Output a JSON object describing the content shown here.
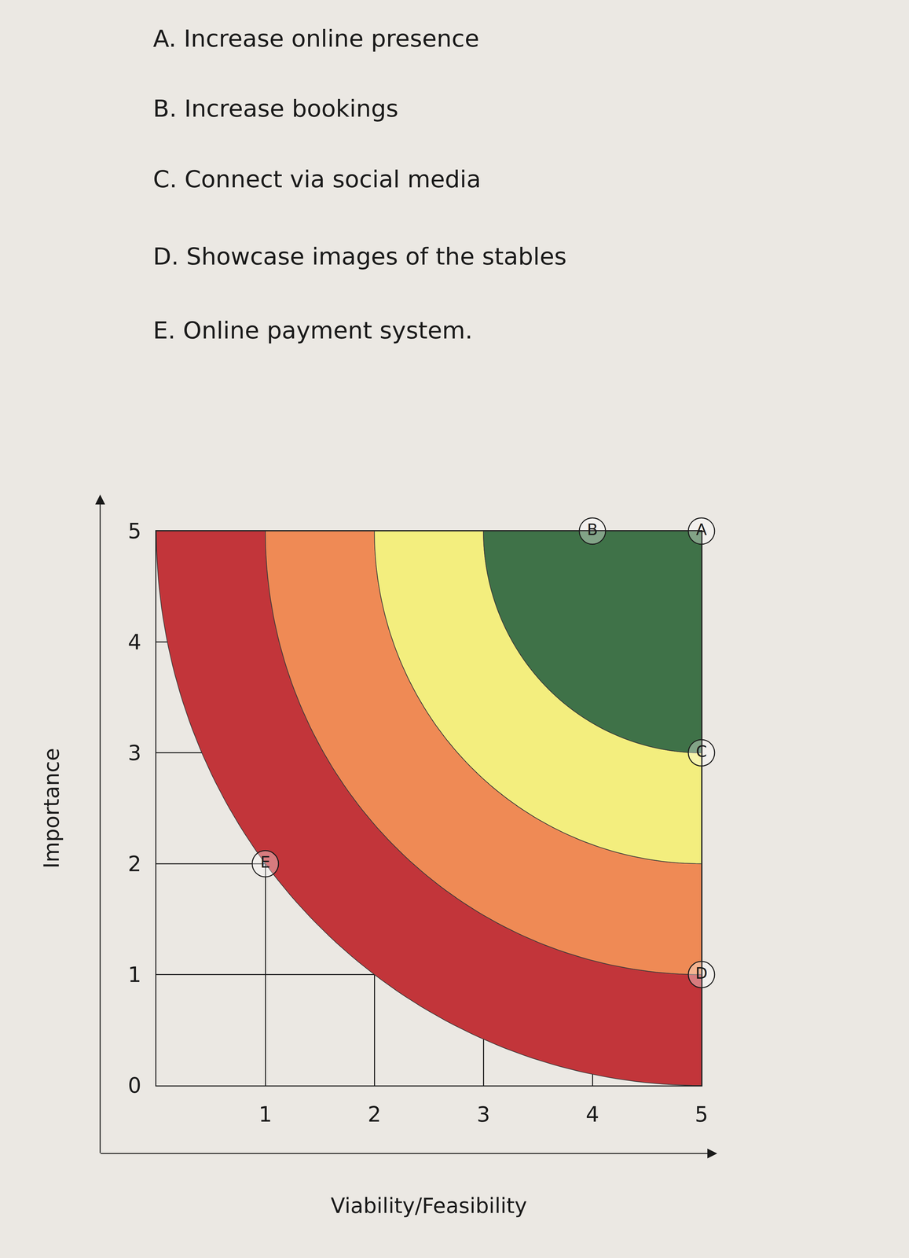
{
  "chart_data": {
    "type": "scatter",
    "items": [
      "A. Increase online presence",
      "B. Increase bookings",
      "C. Connect via social media",
      "D. Showcase images of the stables",
      "E. Online payment system."
    ],
    "x_label": "Viability/Feasibility",
    "y_label": "Importance",
    "points": [
      {
        "label": "A",
        "x": 5,
        "y": 5
      },
      {
        "label": "B",
        "x": 4,
        "y": 5
      },
      {
        "label": "C",
        "x": 5,
        "y": 3
      },
      {
        "label": "D",
        "x": 5,
        "y": 1
      },
      {
        "label": "E",
        "x": 1,
        "y": 2
      }
    ],
    "zone_center": [
      5,
      5
    ],
    "zones": [
      {
        "color": "#c2353a",
        "inner": 4,
        "outer": 5
      },
      {
        "color": "#ef8a55",
        "inner": 3,
        "outer": 4
      },
      {
        "color": "#f3ee7e",
        "inner": 2,
        "outer": 3
      },
      {
        "color": "#3f7248",
        "inner": 0,
        "outer": 2
      }
    ],
    "xlim": [
      0,
      5
    ],
    "ylim": [
      0,
      5
    ],
    "xticks": [
      1,
      2,
      3,
      4,
      5
    ],
    "yticks": [
      0,
      1,
      2,
      3,
      4,
      5
    ],
    "grid": true
  }
}
